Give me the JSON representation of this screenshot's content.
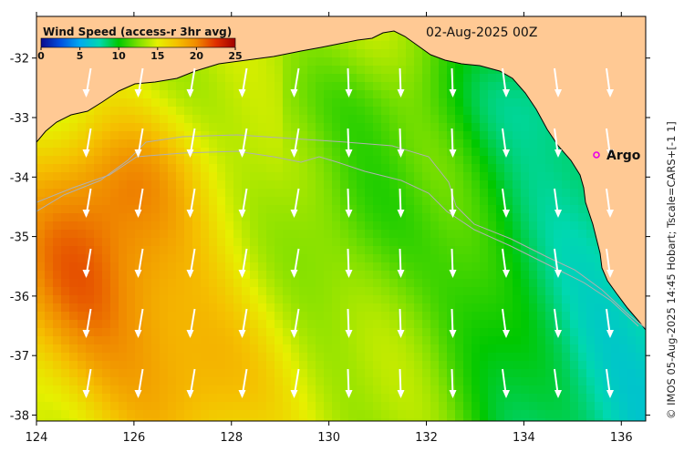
{
  "colorbar": {
    "title": "Wind Speed (access-r 3hr avg)",
    "ticks": [
      "0",
      "5",
      "10",
      "15",
      "20",
      "25"
    ],
    "min": 0,
    "max": 25,
    "colors": [
      "#0a0a8c",
      "#0050e0",
      "#00aaf0",
      "#00d8b0",
      "#00c800",
      "#7ee000",
      "#e6f000",
      "#f5c000",
      "#f08a00",
      "#e03000",
      "#a00000"
    ]
  },
  "date_label": "02-Aug-2025 00Z",
  "argo_label": "Argo",
  "credit": "© IMOS 05-Aug-2025 14:45 Hobart; Tscale=CARS+[-1 1]",
  "x_axis": {
    "ticks": [
      "124",
      "126",
      "128",
      "130",
      "132",
      "134",
      "136"
    ],
    "lon_min": 124,
    "lon_max": 136.5
  },
  "y_axis": {
    "ticks": [
      "-32",
      "-33",
      "-34",
      "-35",
      "-36",
      "-37",
      "-38"
    ],
    "lat_min": -38.1,
    "lat_max": -31.3
  },
  "colors": {
    "land": "#ffc994",
    "coast": "#000000",
    "isobath": "#b0b0b0",
    "arrow": "#ffffff",
    "argo_marker": "#e800e8"
  }
}
